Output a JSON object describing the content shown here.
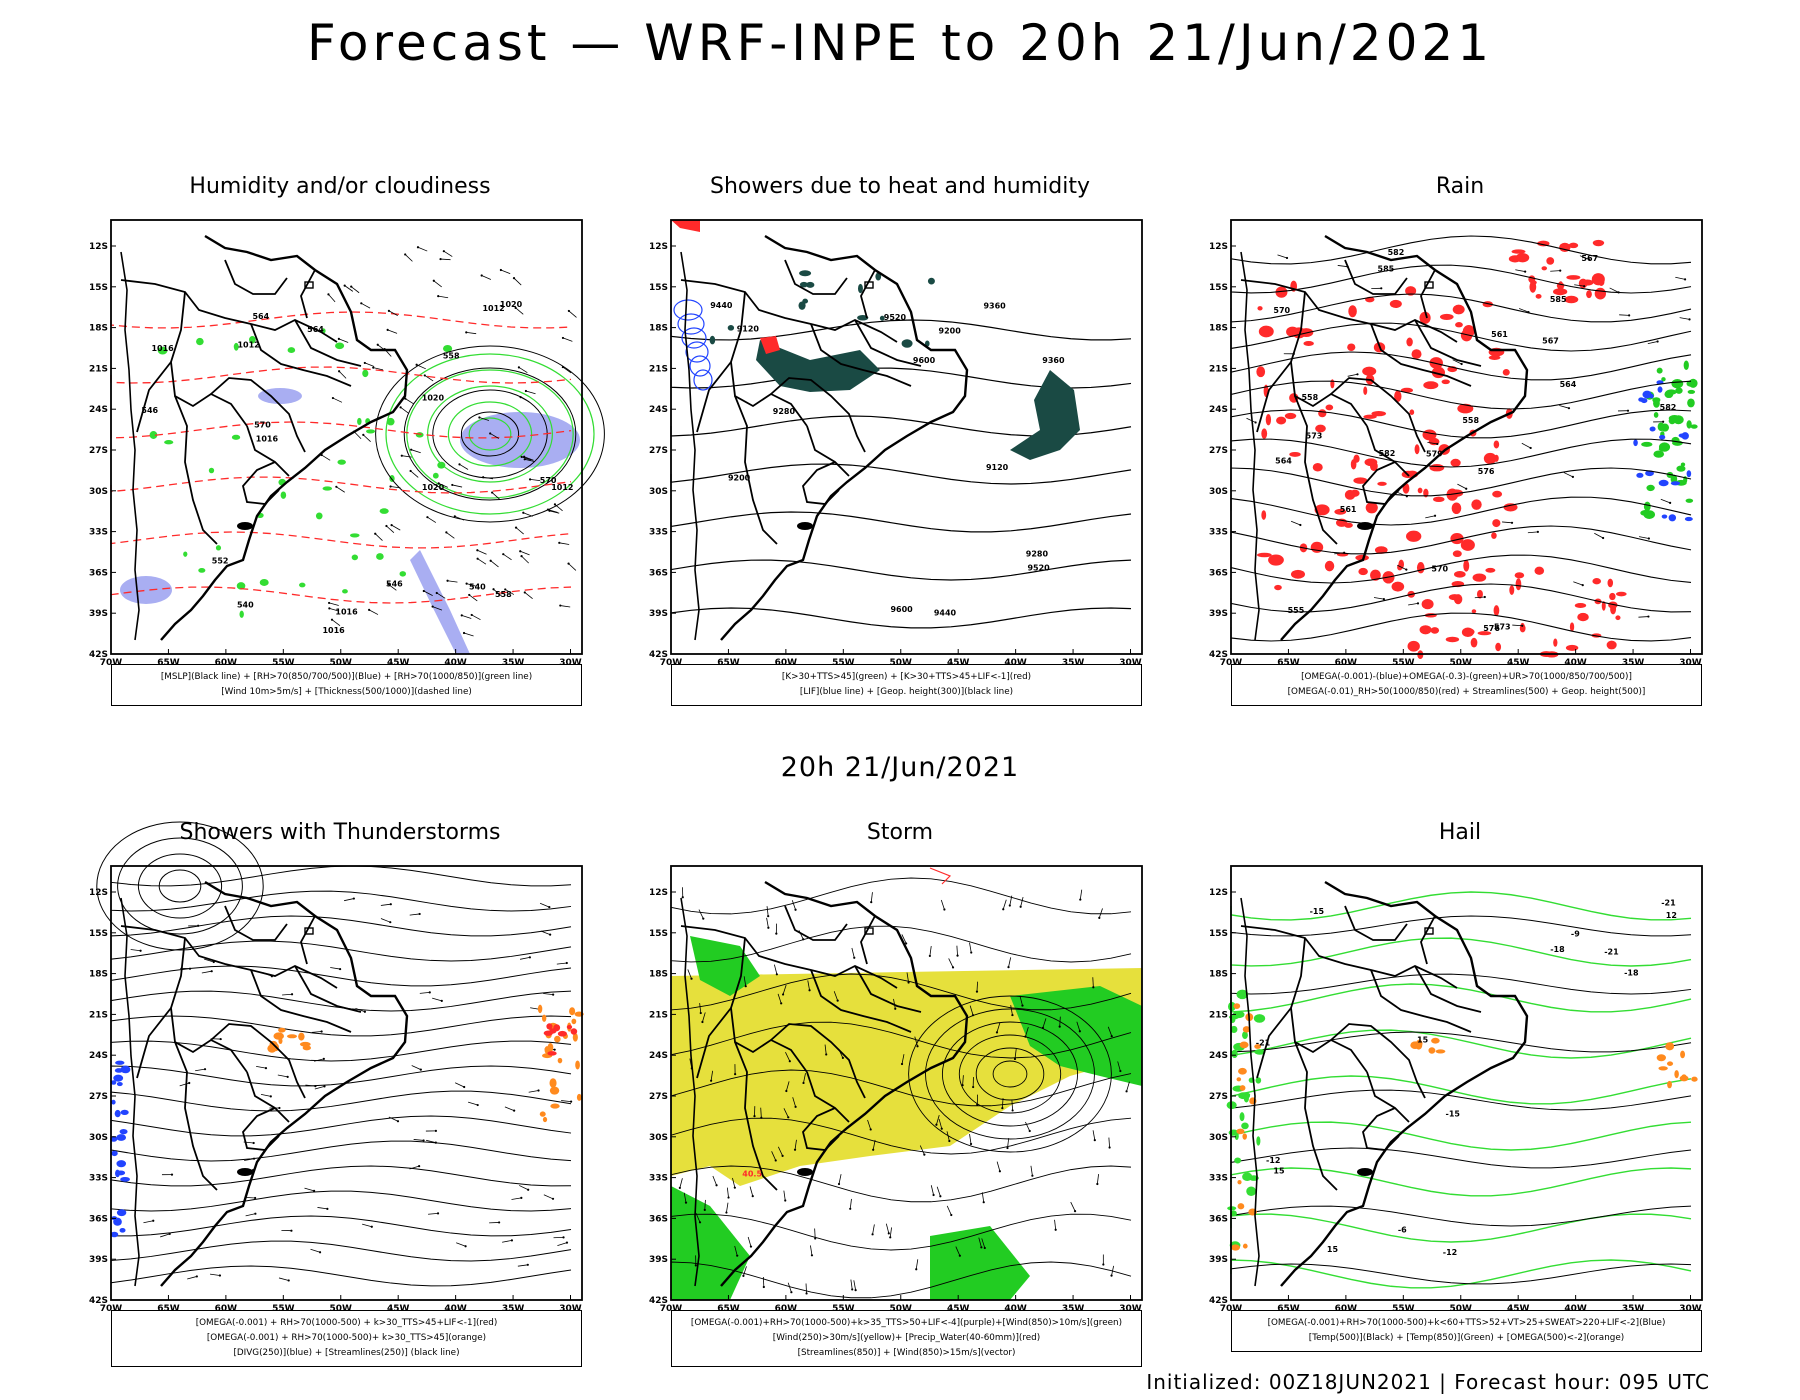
{
  "page": {
    "title": "Forecast — WRF-INPE to 20h 21/Jun/2021",
    "subtitle": "20h 21/Jun/2021",
    "footer": "Initialized: 00Z18JUN2021 | Forecast hour: 095 UTC"
  },
  "axes": {
    "lon_labels": [
      "70W",
      "65W",
      "60W",
      "55W",
      "50W",
      "45W",
      "40W",
      "35W",
      "30W"
    ],
    "lat_labels": [
      "12S",
      "15S",
      "18S",
      "21S",
      "24S",
      "27S",
      "30S",
      "33S",
      "36S",
      "39S",
      "42S"
    ]
  },
  "colors": {
    "green": "#22cc22",
    "green_line": "#33dd33",
    "blue": "#2244ff",
    "lavender": "#9aa0f0",
    "red": "#ff2a2a",
    "orange": "#ff8a1e",
    "dark_teal": "#1a4a44",
    "yellow": "#e6e03c"
  },
  "panels": [
    {
      "title": "Humidity and/or cloudiness",
      "legend": [
        "[MSLP](Black line) + [RH>70(850/700/500)](Blue) + [RH>70(1000/850)](green line)",
        "[Wind 10m>5m/s] + [Thickness(500/1000)](dashed line)"
      ],
      "contour_labels": [
        "1016",
        "1012",
        "1020",
        "1016",
        "1012",
        "1016",
        "1020",
        "1016",
        "1020",
        "1012",
        "570",
        "564",
        "558",
        "552",
        "546",
        "540",
        "570",
        "564",
        "558",
        "546",
        "540"
      ]
    },
    {
      "title": "Showers due to heat and humidity",
      "legend": [
        "[K>30+TTS>45](green) + [K>30+TTS>45+LIF<-1](red)",
        "[LIF](blue line) + [Geop. height(300)](black line)"
      ],
      "contour_labels": [
        "9600",
        "9520",
        "9440",
        "9360",
        "9600",
        "9520",
        "9440",
        "9360",
        "9280",
        "9200",
        "9280",
        "9200",
        "9120",
        "9120"
      ]
    },
    {
      "title": "Rain",
      "legend": [
        "[OMEGA(-0.001)-(blue)+OMEGA(-0.3)-(green)+UR>70(1000/850/700/500)]",
        "[OMEGA(-0.01)_RH>50(1000/850)(red) + Streamlines(500) + Geop. height(500)]"
      ],
      "contour_labels": [
        "582",
        "585",
        "582",
        "579",
        "576",
        "573",
        "570",
        "567",
        "564",
        "561",
        "558",
        "555",
        "585",
        "582",
        "576",
        "573",
        "570",
        "567",
        "564",
        "561",
        "558"
      ]
    },
    {
      "title": "Showers with Thunderstorms",
      "legend": [
        "[OMEGA(-0.001) + RH>70(1000-500) + k>30_TTS>45+LIF<-1](red)",
        "[OMEGA(-0.001) + RH>70(1000-500)+ k>30_TTS>45](orange)",
        "[DIVG(250)](blue) + [Streamlines(250)] (black line)"
      ],
      "contour_labels": []
    },
    {
      "title": "Storm",
      "legend": [
        "[OMEGA(-0.001)+RH>70(1000-500)+k>35_TTS>50+LIF<-4](purple)+[Wind(850)>10m/s](green)",
        "[Wind(250)>30m/s](yellow)+ [Precip_Water(40-60mm)](red)",
        "[Streamlines(850)] + [Wind(850)>15m/s](vector)"
      ],
      "contour_labels": [
        "40.5"
      ]
    },
    {
      "title": "Hail",
      "legend": [
        "[OMEGA(-0.001)+RH>70(1000-500)+k<60+TTS>52+VT>25+SWEAT>220+LIF<-2](Blue)",
        "[Temp(500)](Black) + [Temp(850)](Green) + [OMEGA(500)<-2](orange)"
      ],
      "contour_labels": [
        "-9",
        "-6",
        "-12",
        "-15",
        "-12",
        "-15",
        "-18",
        "-18",
        "-21",
        "-21",
        "-21",
        "12",
        "15",
        "15",
        "15"
      ]
    }
  ]
}
